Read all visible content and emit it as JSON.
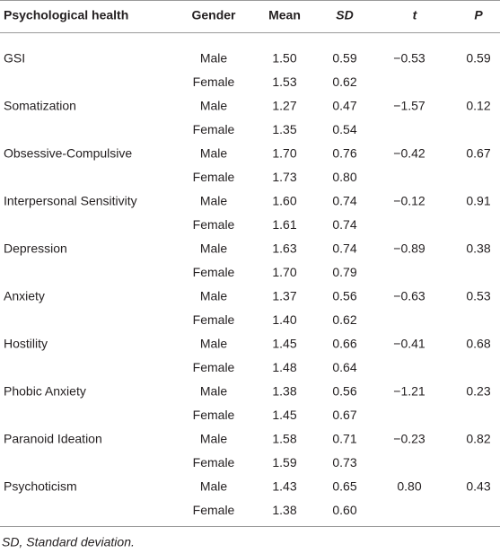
{
  "table": {
    "headers": [
      "Psychological health",
      "Gender",
      "Mean",
      "SD",
      "t",
      "P"
    ],
    "groups": [
      {
        "measure": "GSI",
        "t": "−0.53",
        "p": "0.59",
        "rows": [
          {
            "gender": "Male",
            "mean": "1.50",
            "sd": "0.59"
          },
          {
            "gender": "Female",
            "mean": "1.53",
            "sd": "0.62"
          }
        ]
      },
      {
        "measure": "Somatization",
        "t": "−1.57",
        "p": "0.12",
        "rows": [
          {
            "gender": "Male",
            "mean": "1.27",
            "sd": "0.47"
          },
          {
            "gender": "Female",
            "mean": "1.35",
            "sd": "0.54"
          }
        ]
      },
      {
        "measure": "Obsessive-Compulsive",
        "t": "−0.42",
        "p": "0.67",
        "rows": [
          {
            "gender": "Male",
            "mean": "1.70",
            "sd": "0.76"
          },
          {
            "gender": "Female",
            "mean": "1.73",
            "sd": "0.80"
          }
        ]
      },
      {
        "measure": "Interpersonal Sensitivity",
        "t": "−0.12",
        "p": "0.91",
        "rows": [
          {
            "gender": "Male",
            "mean": "1.60",
            "sd": "0.74"
          },
          {
            "gender": "Female",
            "mean": "1.61",
            "sd": "0.74"
          }
        ]
      },
      {
        "measure": "Depression",
        "t": "−0.89",
        "p": "0.38",
        "rows": [
          {
            "gender": "Male",
            "mean": "1.63",
            "sd": "0.74"
          },
          {
            "gender": "Female",
            "mean": "1.70",
            "sd": "0.79"
          }
        ]
      },
      {
        "measure": "Anxiety",
        "t": "−0.63",
        "p": "0.53",
        "rows": [
          {
            "gender": "Male",
            "mean": "1.37",
            "sd": "0.56"
          },
          {
            "gender": "Female",
            "mean": "1.40",
            "sd": "0.62"
          }
        ]
      },
      {
        "measure": "Hostility",
        "t": "−0.41",
        "p": "0.68",
        "rows": [
          {
            "gender": "Male",
            "mean": "1.45",
            "sd": "0.66"
          },
          {
            "gender": "Female",
            "mean": "1.48",
            "sd": "0.64"
          }
        ]
      },
      {
        "measure": "Phobic Anxiety",
        "t": "−1.21",
        "p": "0.23",
        "rows": [
          {
            "gender": "Male",
            "mean": "1.38",
            "sd": "0.56"
          },
          {
            "gender": "Female",
            "mean": "1.45",
            "sd": "0.67"
          }
        ]
      },
      {
        "measure": "Paranoid Ideation",
        "t": "−0.23",
        "p": "0.82",
        "rows": [
          {
            "gender": "Male",
            "mean": "1.58",
            "sd": "0.71"
          },
          {
            "gender": "Female",
            "mean": "1.59",
            "sd": "0.73"
          }
        ]
      },
      {
        "measure": "Psychoticism",
        "t": "0.80",
        "p": "0.43",
        "rows": [
          {
            "gender": "Male",
            "mean": "1.43",
            "sd": "0.65"
          },
          {
            "gender": "Female",
            "mean": "1.38",
            "sd": "0.60"
          }
        ]
      }
    ],
    "footnote": "SD, Standard deviation."
  }
}
